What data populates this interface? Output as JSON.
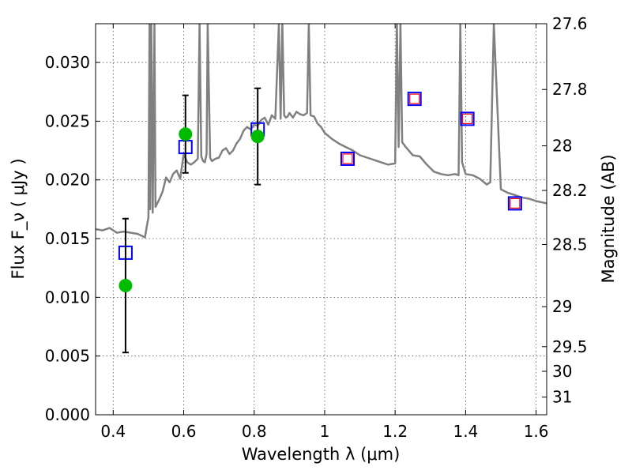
{
  "chart_data": {
    "type": "scatter",
    "title": "",
    "xlabel": "Wavelength  λ (μm)",
    "ylabel": "Flux  F_ν  ( μJy )",
    "ylabel_right": "Magnitude (AB)",
    "xlim": [
      0.35,
      1.63
    ],
    "ylim": [
      0.0,
      0.0333
    ],
    "grid": true,
    "x_ticks": [
      0.4,
      0.6,
      0.8,
      1.0,
      1.2,
      1.4,
      1.6
    ],
    "x_tick_labels": [
      "0.4",
      "0.6",
      "0.8",
      "1",
      "1.2",
      "1.4",
      "1.6"
    ],
    "y_ticks": [
      0.0,
      0.005,
      0.01,
      0.015,
      0.02,
      0.025,
      0.03
    ],
    "y_tick_labels": [
      "0.000",
      "0.005",
      "0.010",
      "0.015",
      "0.020",
      "0.025",
      "0.030"
    ],
    "right_axis": {
      "label": "Magnitude (AB)",
      "ticks": [
        {
          "label": "27.6",
          "flux": 0.0333
        },
        {
          "label": "27.8",
          "flux": 0.0277
        },
        {
          "label": "28",
          "flux": 0.0229
        },
        {
          "label": "28.2",
          "flux": 0.0191
        },
        {
          "label": "28.5",
          "flux": 0.0145
        },
        {
          "label": "29",
          "flux": 0.0092
        },
        {
          "label": "29.5",
          "flux": 0.0058
        },
        {
          "label": "30",
          "flux": 0.0037
        },
        {
          "label": "31",
          "flux": 0.0015
        }
      ]
    },
    "series": [
      {
        "name": "model spectrum",
        "style": "line",
        "color": "#808080",
        "x": [
          0.35,
          0.37,
          0.39,
          0.41,
          0.43,
          0.45,
          0.47,
          0.49,
          0.495,
          0.5,
          0.503,
          0.505,
          0.508,
          0.512,
          0.517,
          0.52,
          0.53,
          0.54,
          0.55,
          0.56,
          0.57,
          0.58,
          0.59,
          0.6,
          0.61,
          0.62,
          0.63,
          0.64,
          0.645,
          0.65,
          0.655,
          0.66,
          0.665,
          0.668,
          0.675,
          0.68,
          0.69,
          0.7,
          0.71,
          0.72,
          0.73,
          0.74,
          0.75,
          0.76,
          0.77,
          0.78,
          0.79,
          0.8,
          0.81,
          0.82,
          0.83,
          0.84,
          0.85,
          0.86,
          0.87,
          0.875,
          0.88,
          0.885,
          0.89,
          0.895,
          0.9,
          0.91,
          0.92,
          0.93,
          0.94,
          0.95,
          0.955,
          0.96,
          0.97,
          0.98,
          0.99,
          1.0,
          1.02,
          1.04,
          1.06,
          1.08,
          1.1,
          1.12,
          1.14,
          1.16,
          1.18,
          1.2,
          1.205,
          1.21,
          1.215,
          1.22,
          1.23,
          1.25,
          1.27,
          1.29,
          1.31,
          1.33,
          1.35,
          1.37,
          1.38,
          1.385,
          1.39,
          1.4,
          1.42,
          1.44,
          1.46,
          1.47,
          1.48,
          1.5,
          1.52,
          1.54,
          1.56,
          1.58,
          1.6,
          1.63
        ],
        "y": [
          0.0158,
          0.0157,
          0.0159,
          0.0155,
          0.0156,
          0.0155,
          0.0154,
          0.0151,
          0.016,
          0.0168,
          0.0333,
          0.0175,
          0.0333,
          0.0172,
          0.0333,
          0.0177,
          0.0183,
          0.019,
          0.0202,
          0.0198,
          0.0205,
          0.0208,
          0.0201,
          0.0222,
          0.0215,
          0.0213,
          0.0215,
          0.0218,
          0.0333,
          0.022,
          0.0216,
          0.0215,
          0.0222,
          0.0333,
          0.0219,
          0.0216,
          0.0218,
          0.0219,
          0.0225,
          0.0227,
          0.0222,
          0.0225,
          0.0231,
          0.0235,
          0.0242,
          0.0245,
          0.0243,
          0.0247,
          0.0246,
          0.0251,
          0.0253,
          0.0247,
          0.0255,
          0.0252,
          0.0333,
          0.0252,
          0.0333,
          0.0255,
          0.0253,
          0.0254,
          0.0257,
          0.0253,
          0.0258,
          0.0256,
          0.0255,
          0.0257,
          0.0333,
          0.0255,
          0.0254,
          0.0248,
          0.0245,
          0.024,
          0.0235,
          0.0231,
          0.0228,
          0.0225,
          0.0221,
          0.0219,
          0.0217,
          0.0215,
          0.0213,
          0.0214,
          0.0333,
          0.0228,
          0.0333,
          0.0232,
          0.0228,
          0.0221,
          0.022,
          0.0213,
          0.0207,
          0.0205,
          0.0204,
          0.0205,
          0.0204,
          0.0333,
          0.0215,
          0.0205,
          0.0204,
          0.0201,
          0.0196,
          0.0198,
          0.0333,
          0.0192,
          0.0189,
          0.0187,
          0.0185,
          0.0184,
          0.0182,
          0.018
        ]
      },
      {
        "name": "model magnitudes",
        "style": "open-square",
        "color": "#0000ff",
        "x": [
          0.435,
          0.605,
          0.81,
          1.065,
          1.255,
          1.405,
          1.54
        ],
        "y": [
          0.0138,
          0.0228,
          0.0243,
          0.0218,
          0.0269,
          0.0252,
          0.018
        ]
      },
      {
        "name": "measured photometry",
        "style": "open-square",
        "color": "#ff0000",
        "x": [
          1.065,
          1.255,
          1.405,
          1.54
        ],
        "y": [
          0.0218,
          0.0269,
          0.0252,
          0.018
        ]
      },
      {
        "name": "detections",
        "style": "filled-circle",
        "color": "#00bb00",
        "x": [
          0.435,
          0.605,
          0.81
        ],
        "y": [
          0.011,
          0.0239,
          0.0237
        ],
        "err_low": [
          0.0057,
          0.0033,
          0.0041
        ],
        "err_high": [
          0.0057,
          0.0033,
          0.0041
        ]
      }
    ]
  }
}
